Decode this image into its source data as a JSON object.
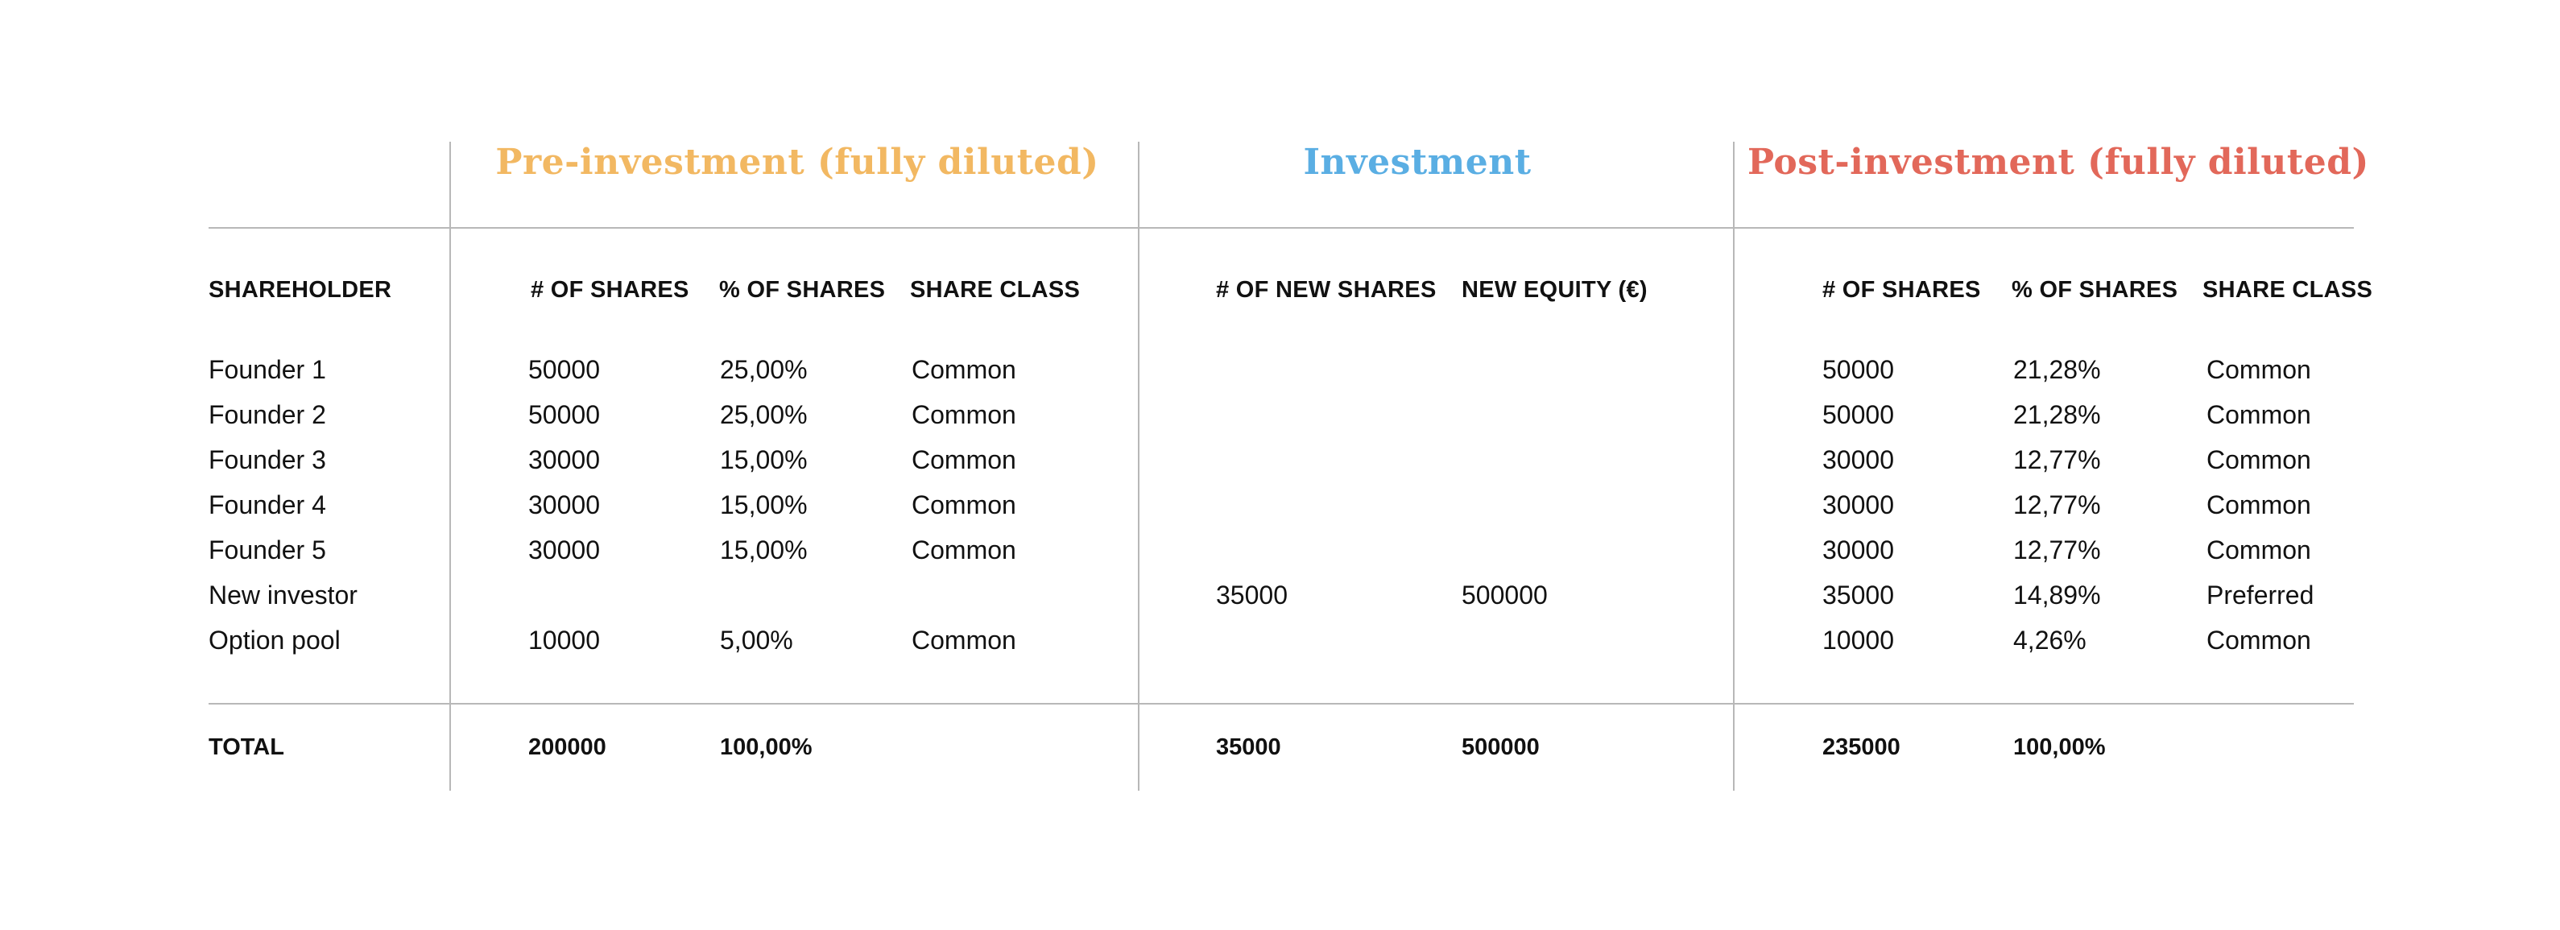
{
  "sections": {
    "pre": "Pre-investment (fully diluted)",
    "inv": "Investment",
    "post": "Post-investment (fully diluted)"
  },
  "colors": {
    "pre": "#F2B862",
    "inv": "#5AAEE3",
    "post": "#E2685A"
  },
  "headers": {
    "shareholder": "SHAREHOLDER",
    "pre_shares": "# OF SHARES",
    "pre_pct": "% OF SHARES",
    "pre_class": "SHARE CLASS",
    "inv_new_shares": "# OF NEW SHARES",
    "inv_equity": "NEW EQUITY (€)",
    "post_shares": "# OF SHARES",
    "post_pct": "% OF SHARES",
    "post_class": "SHARE CLASS"
  },
  "rows": [
    {
      "name": "Founder 1",
      "pre_shares": "50000",
      "pre_pct": "25,00%",
      "pre_class": "Common",
      "inv_shares": "",
      "inv_equity": "",
      "post_shares": "50000",
      "post_pct": "21,28%",
      "post_class": "Common"
    },
    {
      "name": "Founder 2",
      "pre_shares": "50000",
      "pre_pct": "25,00%",
      "pre_class": "Common",
      "inv_shares": "",
      "inv_equity": "",
      "post_shares": "50000",
      "post_pct": "21,28%",
      "post_class": "Common"
    },
    {
      "name": "Founder 3",
      "pre_shares": "30000",
      "pre_pct": "15,00%",
      "pre_class": "Common",
      "inv_shares": "",
      "inv_equity": "",
      "post_shares": "30000",
      "post_pct": "12,77%",
      "post_class": "Common"
    },
    {
      "name": "Founder 4",
      "pre_shares": "30000",
      "pre_pct": "15,00%",
      "pre_class": "Common",
      "inv_shares": "",
      "inv_equity": "",
      "post_shares": "30000",
      "post_pct": "12,77%",
      "post_class": "Common"
    },
    {
      "name": "Founder 5",
      "pre_shares": "30000",
      "pre_pct": "15,00%",
      "pre_class": "Common",
      "inv_shares": "",
      "inv_equity": "",
      "post_shares": "30000",
      "post_pct": "12,77%",
      "post_class": "Common"
    },
    {
      "name": "New investor",
      "pre_shares": "",
      "pre_pct": "",
      "pre_class": "",
      "inv_shares": "35000",
      "inv_equity": "500000",
      "post_shares": "35000",
      "post_pct": "14,89%",
      "post_class": "Preferred"
    },
    {
      "name": "Option pool",
      "pre_shares": "10000",
      "pre_pct": "5,00%",
      "pre_class": "Common",
      "inv_shares": "",
      "inv_equity": "",
      "post_shares": "10000",
      "post_pct": "4,26%",
      "post_class": "Common"
    }
  ],
  "total": {
    "label": "TOTAL",
    "pre_shares": "200000",
    "pre_pct": "100,00%",
    "inv_shares": "35000",
    "inv_equity": "500000",
    "post_shares": "235000",
    "post_pct": "100,00%"
  }
}
